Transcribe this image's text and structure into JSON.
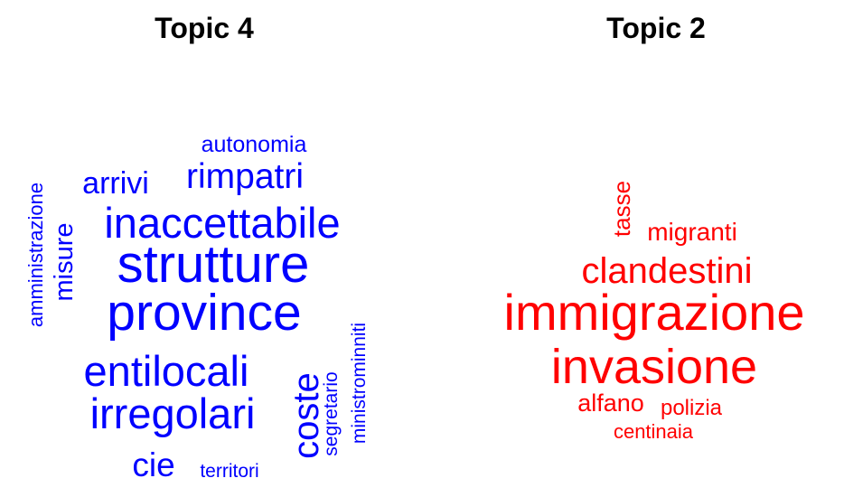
{
  "chart_data": [
    {
      "type": "wordcloud",
      "title": "Topic 4",
      "color": "#0000ff",
      "words": [
        {
          "text": "strutture",
          "weight": 1.0
        },
        {
          "text": "province",
          "weight": 0.97
        },
        {
          "text": "inaccettabile",
          "weight": 0.8
        },
        {
          "text": "entilocali",
          "weight": 0.8
        },
        {
          "text": "irregolari",
          "weight": 0.8
        },
        {
          "text": "coste",
          "weight": 0.68
        },
        {
          "text": "rimpatri",
          "weight": 0.66
        },
        {
          "text": "cie",
          "weight": 0.64
        },
        {
          "text": "misure",
          "weight": 0.5
        },
        {
          "text": "arrivi",
          "weight": 0.48
        },
        {
          "text": "autonomia",
          "weight": 0.42
        },
        {
          "text": "amministrazione",
          "weight": 0.38
        },
        {
          "text": "territori",
          "weight": 0.36
        },
        {
          "text": "segretario",
          "weight": 0.36
        },
        {
          "text": "ministrominniti",
          "weight": 0.36
        }
      ]
    },
    {
      "type": "wordcloud",
      "title": "Topic 2",
      "color": "#ff0000",
      "words": [
        {
          "text": "immigrazione",
          "weight": 1.0
        },
        {
          "text": "invasione",
          "weight": 0.9
        },
        {
          "text": "clandestini",
          "weight": 0.7
        },
        {
          "text": "migranti",
          "weight": 0.52
        },
        {
          "text": "alfano",
          "weight": 0.5
        },
        {
          "text": "tasse",
          "weight": 0.48
        },
        {
          "text": "polizia",
          "weight": 0.46
        },
        {
          "text": "centinaia",
          "weight": 0.44
        }
      ]
    }
  ]
}
